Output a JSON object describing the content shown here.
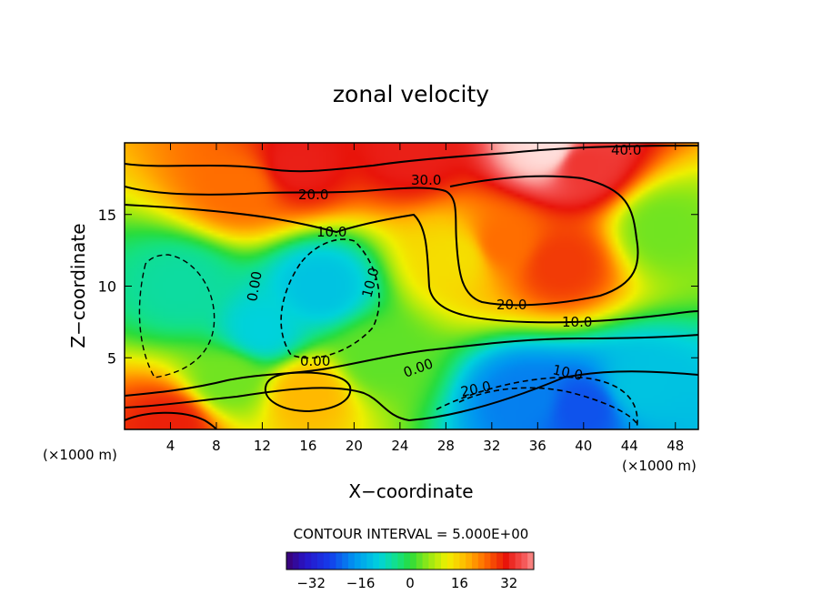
{
  "chart_data": {
    "type": "heatmap",
    "title": "zonal velocity",
    "xlabel": "X−coordinate",
    "ylabel": "Z−coordinate",
    "x_unit_left": "(×1000 m)",
    "x_unit_right": "(×1000 m)",
    "xlim": [
      0,
      50
    ],
    "ylim": [
      0,
      20
    ],
    "x_ticks": [
      4,
      8,
      12,
      16,
      20,
      24,
      28,
      32,
      36,
      40,
      44,
      48
    ],
    "x_tick_labels": [
      "4",
      "8",
      "12",
      "16",
      "20",
      "24",
      "28",
      "32",
      "36",
      "40",
      "44",
      "48"
    ],
    "y_ticks": [
      5,
      10,
      15
    ],
    "y_tick_labels": [
      "5",
      "10",
      "15"
    ],
    "contour_interval_text": "CONTOUR INTERVAL = 5.000E+00",
    "contour_labels": [
      "40.0",
      "30.0",
      "20.0",
      "10.0",
      "0.00",
      "10.0",
      "20.0",
      "10.0",
      "0.00",
      "0.00",
      "10.0",
      "20.0"
    ],
    "colorbar": {
      "min": -40,
      "max": 40,
      "tick_values": [
        -32,
        -16,
        0,
        16,
        32
      ],
      "tick_labels": [
        "−32",
        "−16",
        "0",
        "16",
        "32"
      ]
    },
    "field_features": [
      {
        "x": 37,
        "z": 19.6,
        "value": 45
      },
      {
        "x": 15,
        "z": 18.5,
        "value": 32
      },
      {
        "x": 40,
        "z": 18.5,
        "value": 34
      },
      {
        "x": 25,
        "z": 19.5,
        "value": 32
      },
      {
        "x": 10,
        "z": 17.0,
        "value": 24
      },
      {
        "x": 38,
        "z": 11.5,
        "value": 28
      },
      {
        "x": 33,
        "z": 13.0,
        "value": 24
      },
      {
        "x": 29,
        "z": 12.0,
        "value": 14
      },
      {
        "x": 17,
        "z": 10.0,
        "value": -12
      },
      {
        "x": 5,
        "z": 10.0,
        "value": -6
      },
      {
        "x": 12,
        "z": 7.0,
        "value": -10
      },
      {
        "x": 16,
        "z": 2.5,
        "value": 18
      },
      {
        "x": 4,
        "z": 0.4,
        "value": 30
      },
      {
        "x": 35,
        "z": 2.2,
        "value": -20
      },
      {
        "x": 40,
        "z": 1.5,
        "value": -24
      },
      {
        "x": 45,
        "z": 3.0,
        "value": -12
      },
      {
        "x": 47,
        "z": 14.0,
        "value": 4
      },
      {
        "x": 22,
        "z": 5.0,
        "value": 3
      },
      {
        "x": 9,
        "z": 3.5,
        "value": 4
      }
    ]
  }
}
